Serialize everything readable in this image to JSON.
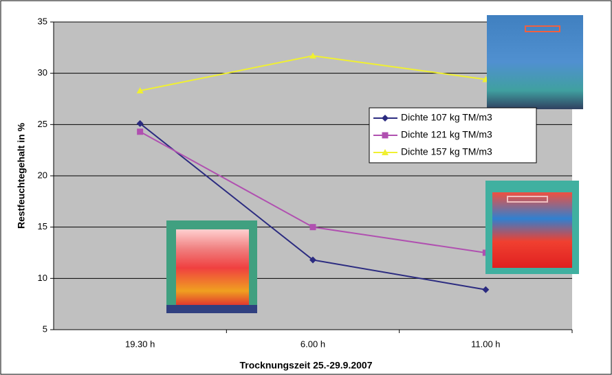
{
  "chart_data": {
    "type": "line",
    "x_label": "Trocknungszeit 25.-29.9.2007",
    "y_label": "Restfeuchtegehalt in %",
    "categories": [
      "19.30 h",
      "6.00 h",
      "11.00 h"
    ],
    "series": [
      {
        "name": "Dichte 107 kg TM/m3",
        "color": "#2b2b80",
        "marker": "diamond",
        "values": [
          25.1,
          11.8,
          8.9
        ]
      },
      {
        "name": "Dichte 121 kg TM/m3",
        "color": "#b050b0",
        "marker": "square",
        "values": [
          24.3,
          15.0,
          12.5
        ]
      },
      {
        "name": "Dichte 157 kg TM/m3",
        "color": "#f0f030",
        "marker": "triangle",
        "values": [
          28.3,
          31.7,
          29.4
        ]
      }
    ],
    "ylim": [
      5,
      35
    ],
    "yticks": [
      5,
      10,
      15,
      20,
      25,
      30,
      35
    ],
    "grid": true
  }
}
